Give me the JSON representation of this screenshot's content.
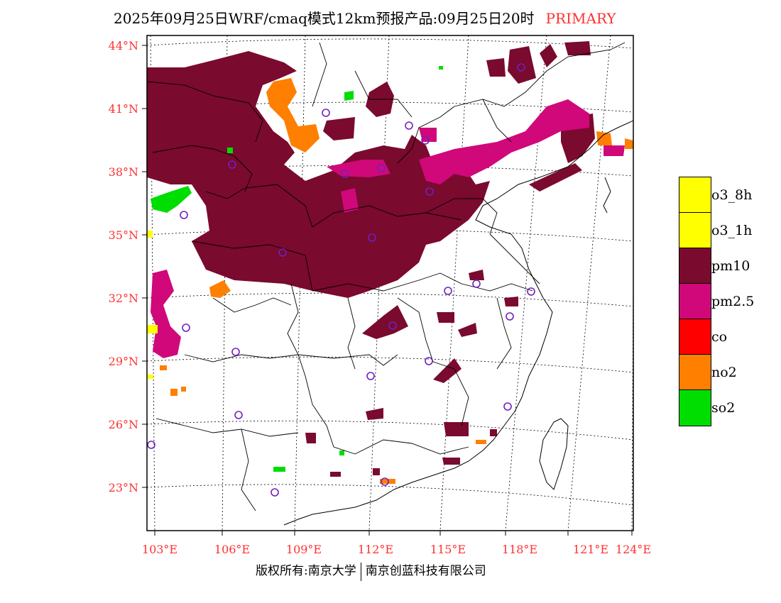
{
  "title": {
    "main": "2025年09月25日WRF/cmaq模式12km预报产品:09月25日20时",
    "primary": "PRIMARY"
  },
  "axes": {
    "lat_labels": [
      "44°N",
      "41°N",
      "38°N",
      "35°N",
      "32°N",
      "29°N",
      "26°N",
      "23°N"
    ],
    "lon_labels": [
      "103°E",
      "106°E",
      "109°E",
      "112°E",
      "115°E",
      "118°E",
      "121°E",
      "124°E"
    ]
  },
  "legend": [
    {
      "label": "o3_8h",
      "color": "#ffff00"
    },
    {
      "label": "o3_1h",
      "color": "#ffff00"
    },
    {
      "label": "pm10",
      "color": "#7a0a2e"
    },
    {
      "label": "pm2.5",
      "color": "#d0087a"
    },
    {
      "label": "co",
      "color": "#ff0000"
    },
    {
      "label": "no2",
      "color": "#ff7f00"
    },
    {
      "label": "so2",
      "color": "#00dd00"
    }
  ],
  "footer": {
    "left": "版权所有:南京大学",
    "right": "南京创蓝科技有限公司"
  }
}
